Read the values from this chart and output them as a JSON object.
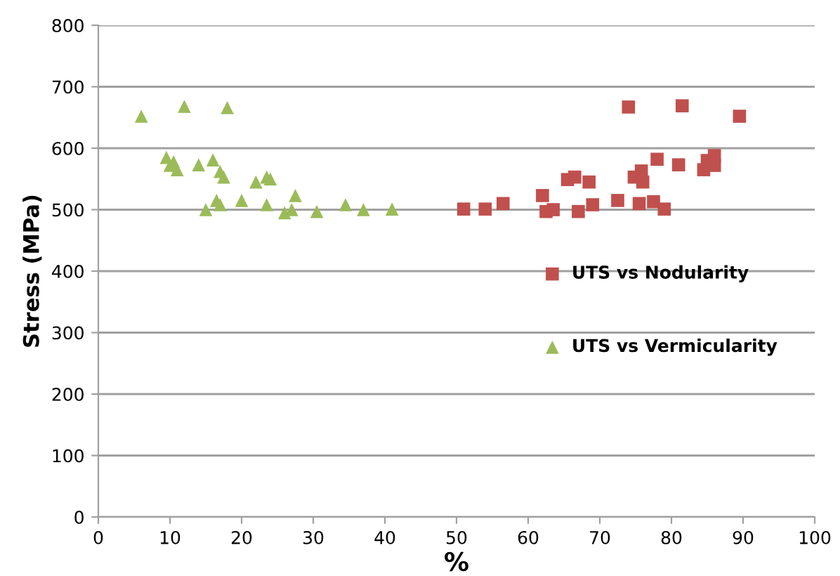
{
  "chart_data": {
    "type": "scatter",
    "xlabel": "%",
    "ylabel": "Stress (MPa)",
    "xlim": [
      0,
      100
    ],
    "ylim": [
      0,
      800
    ],
    "xticks": [
      0,
      10,
      20,
      30,
      40,
      50,
      60,
      70,
      80,
      90,
      100
    ],
    "yticks": [
      0,
      100,
      200,
      300,
      400,
      500,
      600,
      700,
      800
    ],
    "grid": "y",
    "legend": "right",
    "series": [
      {
        "name": "UTS vs Nodularity",
        "color": "#c0504d",
        "marker": "square",
        "x": [
          51,
          54,
          56.5,
          62,
          62.5,
          63.5,
          65.5,
          66.5,
          67,
          68.5,
          69,
          72.5,
          74,
          74.8,
          75.8,
          75.5,
          76,
          77.5,
          78,
          79,
          81,
          81.5,
          84.5,
          85,
          86,
          86,
          89.5
        ],
        "values": [
          501,
          501,
          510,
          523,
          497,
          500,
          549,
          553,
          497,
          545,
          508,
          515,
          667,
          553,
          563,
          510,
          545,
          513,
          582,
          501,
          573,
          669,
          565,
          580,
          588,
          572,
          652
        ]
      },
      {
        "name": "UTS vs Vermicularity",
        "color": "#9bbb59",
        "marker": "triangle",
        "x": [
          6,
          9.5,
          10,
          10.5,
          11,
          12,
          14,
          15,
          16,
          16.5,
          17,
          17,
          17.5,
          18,
          20,
          22,
          23.5,
          24,
          23.5,
          26,
          27,
          27.5,
          30.5,
          34.5,
          37,
          41
        ],
        "values": [
          652,
          585,
          572,
          578,
          565,
          668,
          573,
          500,
          581,
          515,
          508,
          562,
          553,
          666,
          515,
          545,
          553,
          550,
          508,
          495,
          500,
          523,
          497,
          508,
          500,
          501
        ]
      }
    ]
  }
}
